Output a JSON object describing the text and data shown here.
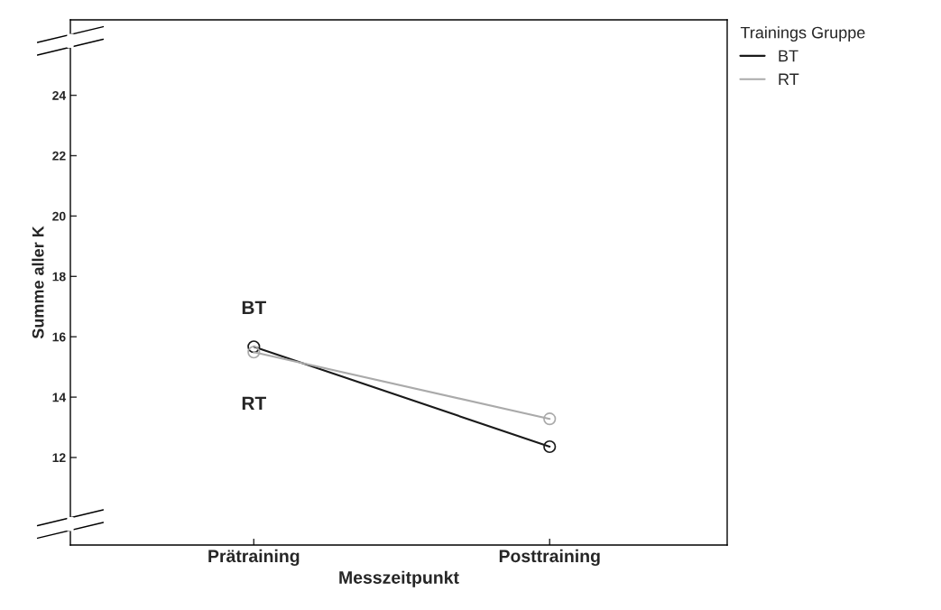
{
  "chart_data": {
    "type": "line",
    "xlabel": "Messzeitpunkt",
    "ylabel": "Summe aller K",
    "legend_title": "Trainings Gruppe",
    "categories": [
      "Prätraining",
      "Posttraining"
    ],
    "series": [
      {
        "name": "BT",
        "color": "#1a1a1a",
        "values": [
          15.67,
          12.36
        ]
      },
      {
        "name": "RT",
        "color": "#aaaaaa",
        "values": [
          15.49,
          13.28
        ]
      }
    ],
    "ylim": [
      9.1,
      26.5
    ],
    "yticks": [
      12,
      14,
      16,
      18,
      20,
      22,
      24
    ],
    "annotations": [
      "BT",
      "RT"
    ],
    "marker": "circle",
    "line_style": "solid",
    "legend": "top right",
    "grid": false
  }
}
